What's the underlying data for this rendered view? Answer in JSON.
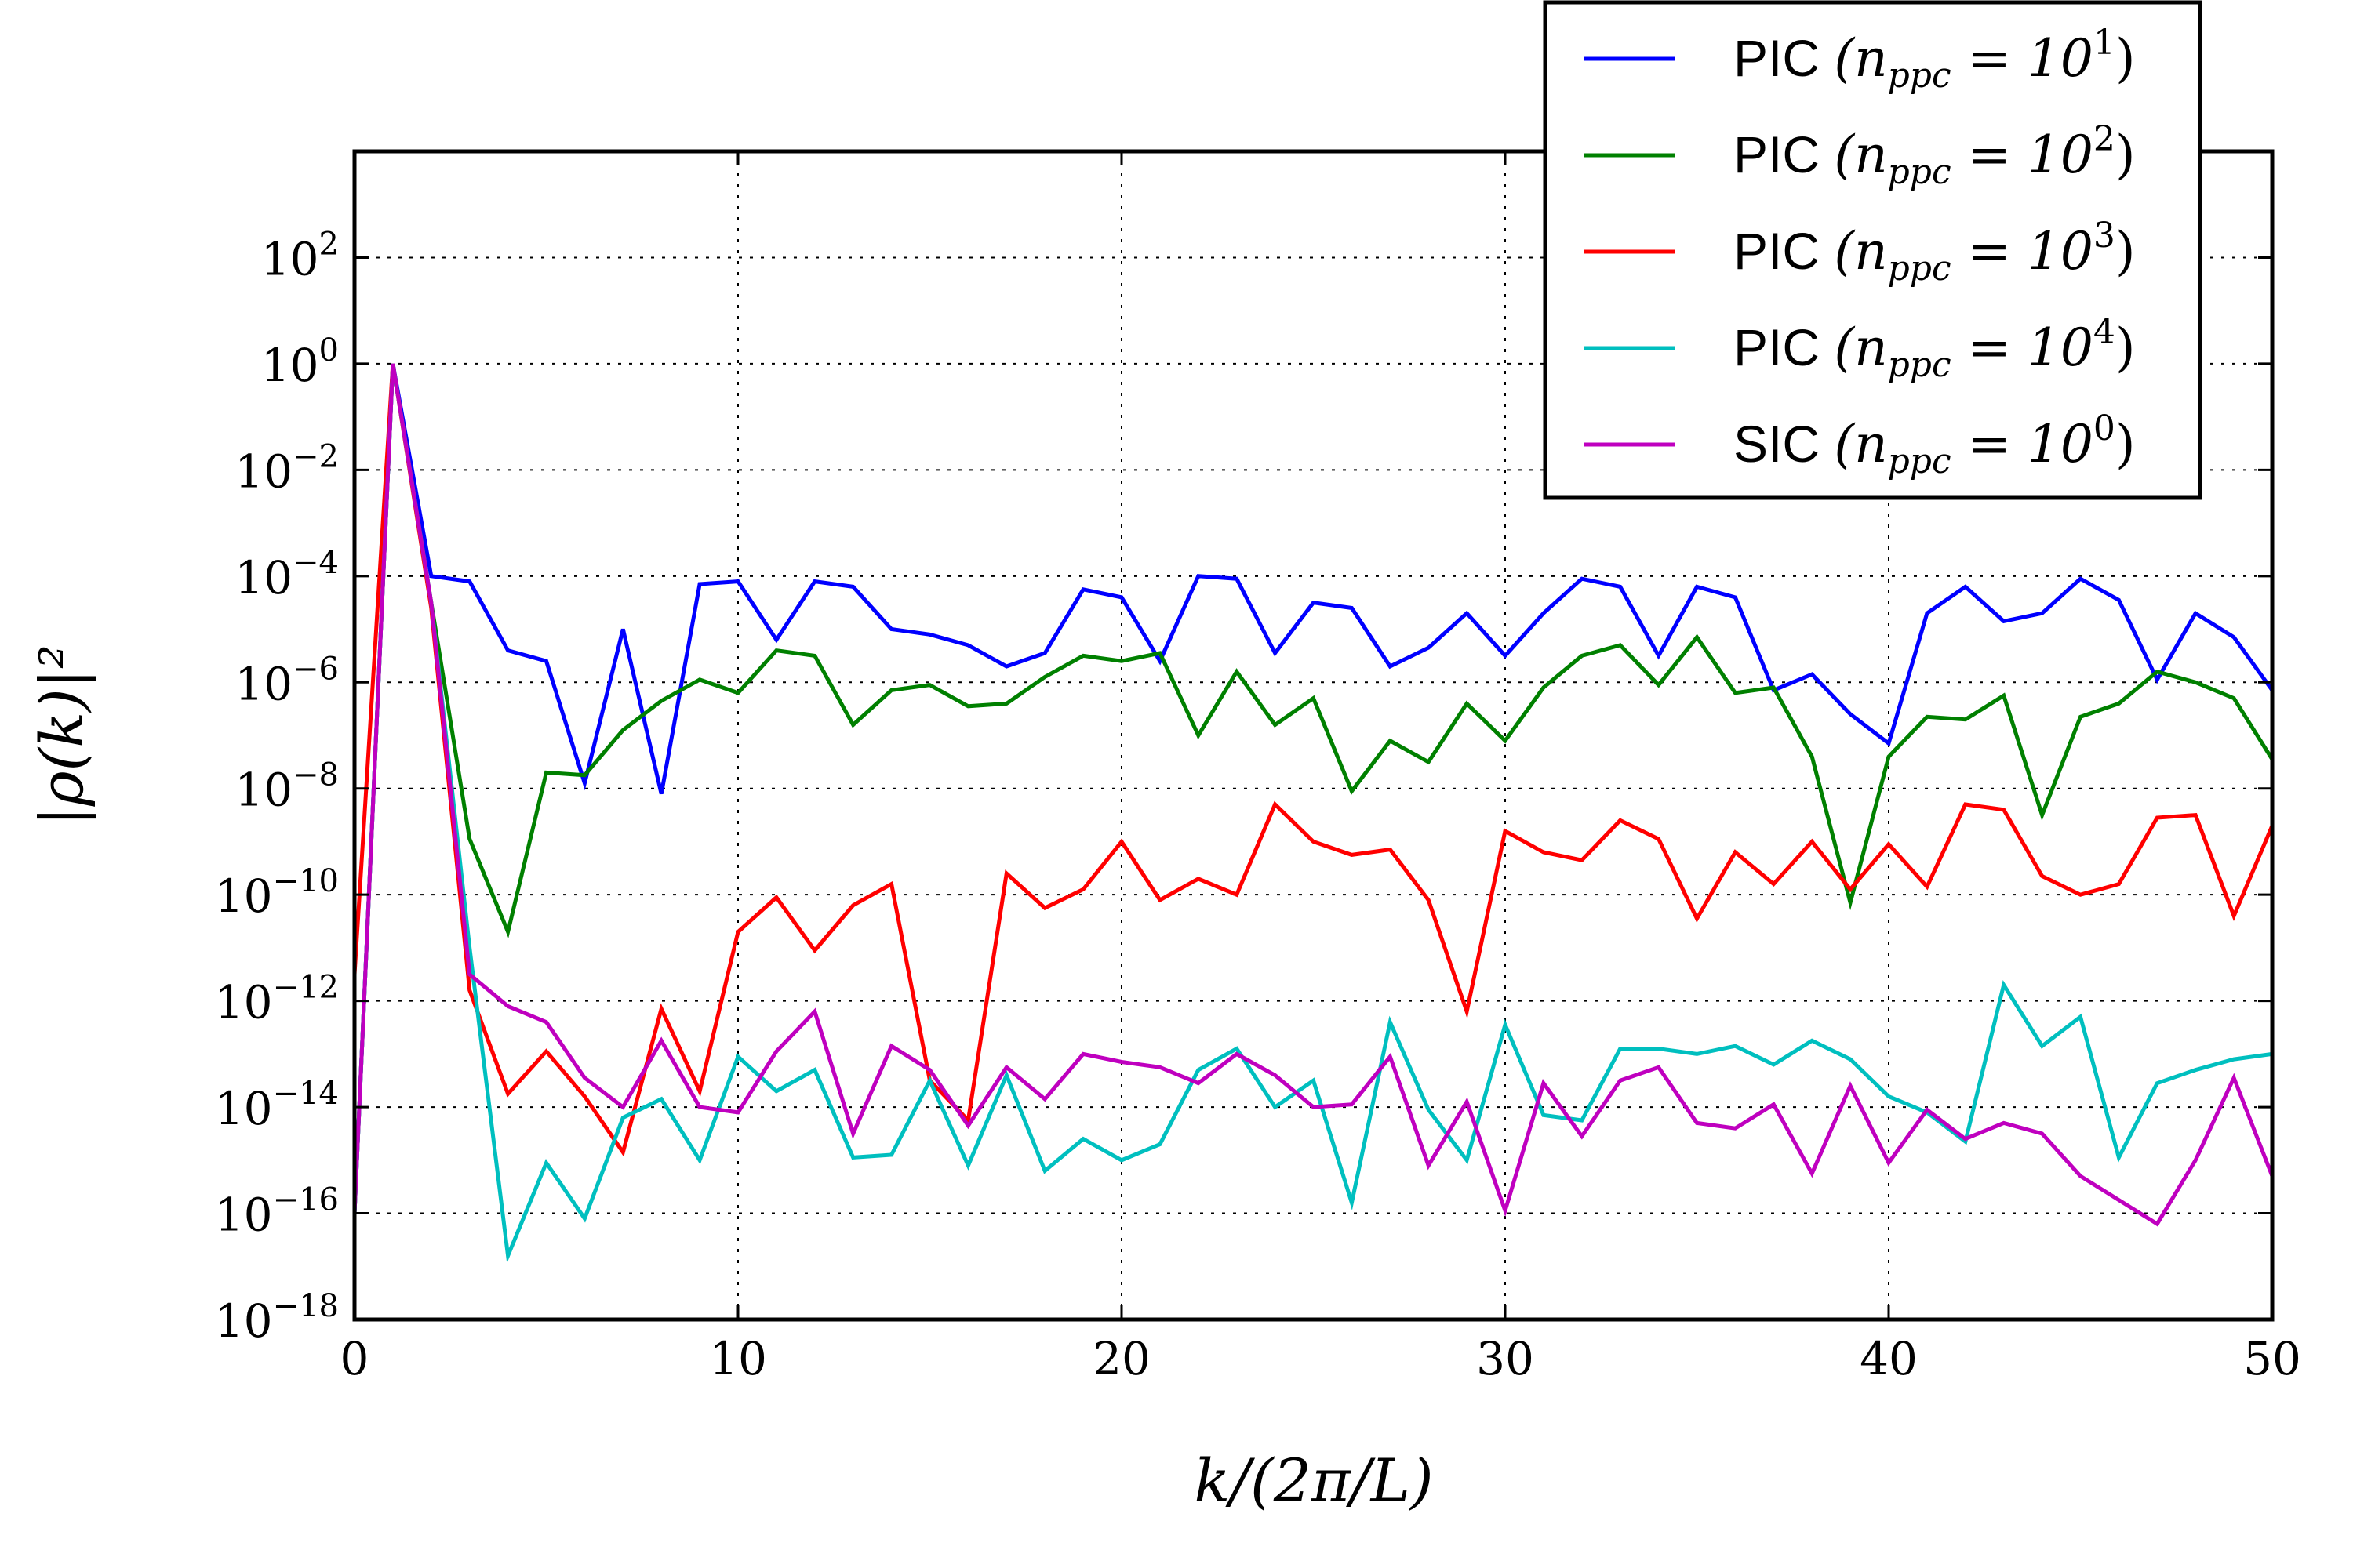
{
  "chart_data": {
    "type": "line",
    "title": "",
    "xlabel": "k/(2π/L)",
    "ylabel": "|ρ(k)|²",
    "yscale": "log",
    "xlim": [
      0,
      50
    ],
    "ylim_exponent": [
      -18,
      4
    ],
    "grid": true,
    "legend_position": "top-right",
    "x_ticks": [
      0,
      10,
      20,
      30,
      40,
      50
    ],
    "x_tick_labels": [
      "0",
      "10",
      "20",
      "30",
      "40",
      "50"
    ],
    "y_tick_exponents": [
      -18,
      -16,
      -14,
      -12,
      -10,
      -8,
      -6,
      -4,
      -2,
      0,
      2
    ],
    "y_tick_labels": [
      {
        "base": "10",
        "exp": "−18"
      },
      {
        "base": "10",
        "exp": "−16"
      },
      {
        "base": "10",
        "exp": "−14"
      },
      {
        "base": "10",
        "exp": "−12"
      },
      {
        "base": "10",
        "exp": "−10"
      },
      {
        "base": "10",
        "exp": "−8"
      },
      {
        "base": "10",
        "exp": "−6"
      },
      {
        "base": "10",
        "exp": "−4"
      },
      {
        "base": "10",
        "exp": "−2"
      },
      {
        "base": "10",
        "exp": "0"
      },
      {
        "base": "10",
        "exp": "2"
      }
    ],
    "x": [
      0,
      1,
      2,
      3,
      4,
      5,
      6,
      7,
      8,
      9,
      10,
      11,
      12,
      13,
      14,
      15,
      16,
      17,
      18,
      19,
      20,
      21,
      22,
      23,
      24,
      25,
      26,
      27,
      28,
      29,
      30,
      31,
      32,
      33,
      34,
      35,
      36,
      37,
      38,
      39,
      40,
      41,
      42,
      43,
      44,
      45,
      46,
      47,
      48,
      49,
      50
    ],
    "series": [
      {
        "name": "PIC (n_ppc = 10^1)",
        "method": "PIC",
        "n_exp": "1",
        "color": "#0000ff",
        "log10_values": [
          -16,
          0,
          -4.0,
          -4.1,
          -5.4,
          -5.6,
          -7.9,
          -5.0,
          -8.1,
          -4.15,
          -4.1,
          -5.2,
          -4.1,
          -4.2,
          -5.0,
          -5.1,
          -5.3,
          -5.7,
          -5.45,
          -4.25,
          -4.4,
          -5.6,
          -4.0,
          -4.05,
          -5.45,
          -4.5,
          -4.6,
          -5.7,
          -5.35,
          -4.7,
          -5.5,
          -4.7,
          -4.05,
          -4.2,
          -5.5,
          -4.2,
          -4.4,
          -6.15,
          -5.85,
          -6.6,
          -7.15,
          -4.7,
          -4.2,
          -4.85,
          -4.7,
          -4.05,
          -4.45,
          -5.95,
          -4.7,
          -5.15,
          -6.15
        ]
      },
      {
        "name": "PIC (n_ppc = 10^2)",
        "method": "PIC",
        "n_exp": "2",
        "color": "#008000",
        "log10_values": [
          -16,
          0,
          -4.5,
          -8.95,
          -10.7,
          -7.7,
          -7.75,
          -6.9,
          -6.35,
          -5.95,
          -6.2,
          -5.4,
          -5.5,
          -6.8,
          -6.15,
          -6.05,
          -6.45,
          -6.4,
          -5.9,
          -5.5,
          -5.6,
          -5.45,
          -7.0,
          -5.8,
          -6.8,
          -6.3,
          -8.05,
          -7.1,
          -7.5,
          -6.4,
          -7.1,
          -6.1,
          -5.5,
          -5.3,
          -6.05,
          -5.15,
          -6.2,
          -6.1,
          -7.4,
          -10.15,
          -7.4,
          -6.65,
          -6.7,
          -6.25,
          -8.5,
          -6.65,
          -6.4,
          -5.8,
          -6.0,
          -6.3,
          -7.45
        ]
      },
      {
        "name": "PIC (n_ppc = 10^3)",
        "method": "PIC",
        "n_exp": "3",
        "color": "#ff0000",
        "log10_values": [
          -11.5,
          0,
          -4.6,
          -11.8,
          -13.75,
          -12.95,
          -13.8,
          -14.85,
          -12.15,
          -13.7,
          -10.7,
          -10.05,
          -11.05,
          -10.2,
          -9.8,
          -13.5,
          -14.25,
          -9.6,
          -10.25,
          -9.9,
          -9.0,
          -10.1,
          -9.7,
          -10.0,
          -8.3,
          -9.0,
          -9.25,
          -9.15,
          -10.1,
          -12.2,
          -8.8,
          -9.2,
          -9.35,
          -8.6,
          -8.95,
          -10.45,
          -9.2,
          -9.8,
          -9.0,
          -9.9,
          -9.05,
          -9.85,
          -8.3,
          -8.4,
          -9.65,
          -10.0,
          -9.8,
          -8.55,
          -8.5,
          -10.4,
          -8.7
        ]
      },
      {
        "name": "PIC (n_ppc = 10^4)",
        "method": "PIC",
        "n_exp": "4",
        "color": "#00bfbf",
        "log10_values": [
          -16,
          0,
          -4.5,
          -11.0,
          -16.8,
          -15.05,
          -16.1,
          -14.2,
          -13.85,
          -15.0,
          -13.05,
          -13.7,
          -13.3,
          -14.95,
          -14.9,
          -13.5,
          -15.1,
          -13.4,
          -15.2,
          -14.6,
          -15.0,
          -14.7,
          -13.3,
          -12.9,
          -14.0,
          -13.5,
          -15.8,
          -12.4,
          -14.05,
          -15.0,
          -12.45,
          -14.15,
          -14.25,
          -12.9,
          -12.9,
          -13.0,
          -12.85,
          -13.2,
          -12.75,
          -13.1,
          -13.8,
          -14.1,
          -14.65,
          -11.7,
          -12.85,
          -12.3,
          -14.95,
          -13.55,
          -13.3,
          -13.1,
          -13.0
        ]
      },
      {
        "name": "SIC (n_ppc = 10^0)",
        "method": "SIC",
        "n_exp": "0",
        "color": "#bf00bf",
        "log10_values": [
          -16,
          0,
          -4.5,
          -11.5,
          -12.1,
          -12.4,
          -13.45,
          -14.0,
          -12.75,
          -14.0,
          -14.1,
          -12.95,
          -12.2,
          -14.5,
          -12.85,
          -13.3,
          -14.35,
          -13.25,
          -13.85,
          -13.0,
          -13.15,
          -13.25,
          -13.55,
          -13.0,
          -13.4,
          -14.0,
          -13.95,
          -13.05,
          -15.1,
          -13.9,
          -15.95,
          -13.55,
          -14.55,
          -13.5,
          -13.25,
          -14.3,
          -14.4,
          -13.95,
          -15.25,
          -13.6,
          -15.05,
          -14.05,
          -14.6,
          -14.3,
          -14.5,
          -15.3,
          -15.75,
          -16.2,
          -15.0,
          -13.45,
          -15.3
        ]
      }
    ]
  }
}
